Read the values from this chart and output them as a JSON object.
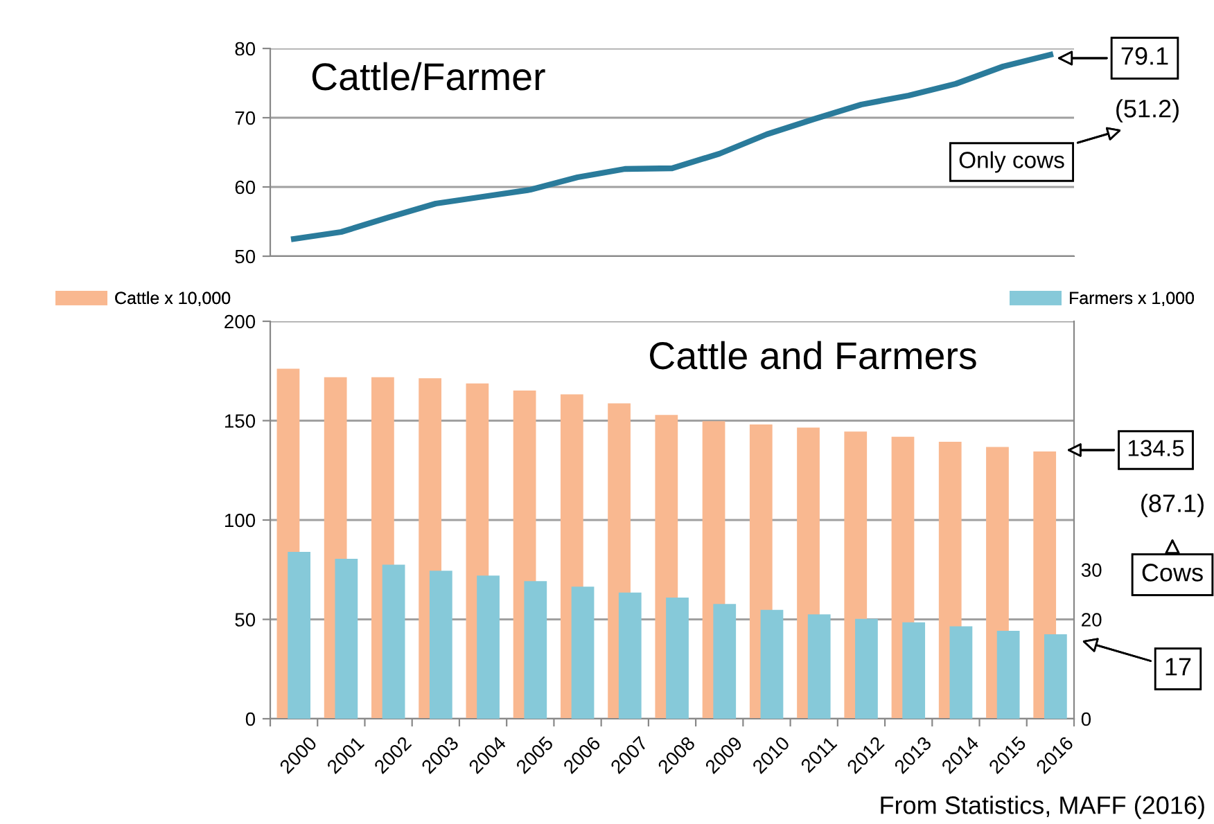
{
  "chart_data": [
    {
      "type": "line",
      "title": "Cattle/Farmer",
      "categories": [
        "2000",
        "2001",
        "2002",
        "2003",
        "2004",
        "2005",
        "2006",
        "2007",
        "2008",
        "2009",
        "2010",
        "2011",
        "2012",
        "2013",
        "2014",
        "2015",
        "2016"
      ],
      "series": [
        {
          "color": "#2a7b9b",
          "values": [
            52.5,
            53.5,
            55.6,
            57.6,
            58.6,
            59.6,
            61.4,
            62.6,
            62.7,
            64.8,
            67.6,
            69.8,
            71.9,
            73.2,
            74.9,
            77.4,
            79.1
          ]
        }
      ],
      "ylim": [
        50,
        80
      ],
      "yticks": [
        50,
        60,
        70,
        80
      ],
      "grid": "y",
      "tick_labels": "y",
      "annotations": [
        "79.1",
        "(51.2)",
        "Only cows"
      ]
    },
    {
      "type": "bar",
      "title": "Cattle and Farmers",
      "categories": [
        "2000",
        "2001",
        "2002",
        "2003",
        "2004",
        "2005",
        "2006",
        "2007",
        "2008",
        "2009",
        "2010",
        "2011",
        "2012",
        "2013",
        "2014",
        "2015",
        "2016"
      ],
      "series": [
        {
          "name": "Cattle x 10,000",
          "color": "#f9b890",
          "values": [
            176.1,
            171.9,
            171.9,
            171.3,
            168.7,
            165.2,
            163.2,
            158.7,
            152.9,
            149.7,
            148.1,
            146.5,
            144.5,
            141.9,
            139.4,
            136.8,
            134.5
          ]
        },
        {
          "name": "Farmers x 1,000",
          "color": "#86c9d9",
          "axis": "y2",
          "values": [
            33.6,
            32.2,
            31.0,
            29.8,
            28.8,
            27.7,
            26.6,
            25.4,
            24.4,
            23.1,
            21.9,
            21.0,
            20.1,
            19.4,
            18.6,
            17.7,
            17.0
          ]
        }
      ],
      "ylim": [
        0,
        200
      ],
      "yticks": [
        0,
        50,
        100,
        150,
        200
      ],
      "y2lim": [
        0,
        80
      ],
      "y2ticks": [
        0,
        20,
        30
      ],
      "grid": "y",
      "legend": "top",
      "annotations": [
        "134.5",
        "(87.1)",
        "Cows",
        "17",
        "From Statistics, MAFF (2016)"
      ]
    }
  ]
}
